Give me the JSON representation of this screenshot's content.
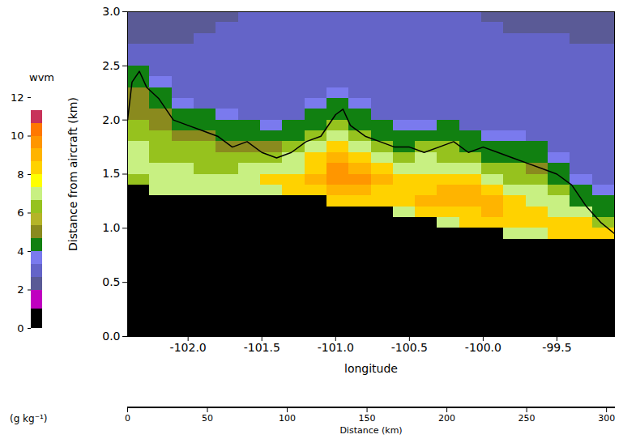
{
  "chart_data": {
    "type": "heatmap",
    "xlabel": "longitude",
    "ylabel": "Distance from aircraft (km)",
    "xlim": [
      -102.41,
      -99.11
    ],
    "xticks": [
      {
        "value": -102,
        "label": "-102.0"
      },
      -101.5,
      {
        "value": -101,
        "label": "-101.0"
      },
      -100.5,
      {
        "value": -100,
        "label": "-100.0"
      },
      -99.5
    ],
    "ylim": [
      0,
      3
    ],
    "yticks": [
      {
        "value": 0,
        "label": "0.0"
      },
      0.5,
      {
        "value": 1,
        "label": "1.0"
      },
      1.5,
      {
        "value": 2,
        "label": "2.0"
      },
      2.5,
      {
        "value": 3,
        "label": "3.0"
      }
    ],
    "x2label": "Distance (km)",
    "x2lim": [
      0,
      305
    ],
    "x2ticks": [
      0,
      50,
      100,
      150,
      200,
      250,
      300
    ],
    "grid": false,
    "cells": {
      "x_edges": [
        -102.41,
        -102.26,
        -102.11,
        -101.96,
        -101.81,
        -101.66,
        -101.51,
        -101.36,
        -101.21,
        -101.06,
        -100.91,
        -100.76,
        -100.61,
        -100.46,
        -100.31,
        -100.16,
        -100.01,
        -99.86,
        -99.71,
        -99.56,
        -99.41,
        -99.26,
        -99.11
      ],
      "y_edges": [
        0,
        0.1,
        0.2,
        0.3,
        0.4,
        0.5,
        0.6,
        0.7,
        0.8,
        0.9,
        1.0,
        1.1,
        1.2,
        1.3,
        1.4,
        1.5,
        1.6,
        1.7,
        1.8,
        1.9,
        2.0,
        2.1,
        2.2,
        2.3,
        2.4,
        2.5,
        2.6,
        2.7,
        2.8,
        2.9,
        3.0
      ],
      "values": [
        [
          0,
          0,
          0,
          0,
          0,
          0,
          0,
          0,
          0,
          0,
          0,
          0,
          0,
          0,
          6,
          7,
          7,
          7,
          6,
          6,
          5,
          5,
          5,
          4,
          4,
          3,
          3,
          2.5,
          2.5,
          2.5
        ],
        [
          0,
          0,
          0,
          0,
          0,
          0,
          0,
          0,
          0,
          0,
          0,
          0,
          0,
          7,
          7,
          7,
          6,
          6,
          6,
          5,
          5,
          4,
          4,
          3.5,
          3,
          3,
          3,
          2.5,
          2.5,
          2.5
        ],
        [
          0,
          0,
          0,
          0,
          0,
          0,
          0,
          0,
          0,
          0,
          0,
          0,
          0,
          7,
          7,
          7,
          6,
          6,
          5,
          4,
          4,
          3.5,
          3,
          3,
          3,
          3,
          3,
          2.5,
          2.5,
          2.5
        ],
        [
          0,
          0,
          0,
          0,
          0,
          0,
          0,
          0,
          0,
          0,
          0,
          0,
          0,
          7,
          7,
          6,
          6,
          6,
          5,
          4,
          4,
          3,
          3,
          3,
          3,
          3,
          3,
          3,
          2.5,
          2.5
        ],
        [
          0,
          0,
          0,
          0,
          0,
          0,
          0,
          0,
          0,
          0,
          0,
          0,
          0,
          7,
          7,
          6,
          6,
          5,
          4,
          4,
          3.5,
          3,
          3,
          3,
          3,
          3,
          3,
          3,
          3,
          2.5
        ],
        [
          0,
          0,
          0,
          0,
          0,
          0,
          0,
          0,
          0,
          0,
          0,
          0,
          0,
          7,
          7,
          7,
          6,
          5,
          4,
          4,
          3,
          3,
          3,
          3,
          3,
          3,
          3,
          3,
          3,
          3
        ],
        [
          0,
          0,
          0,
          0,
          0,
          0,
          0,
          0,
          0,
          0,
          0,
          0,
          0,
          7,
          8,
          7,
          6,
          5,
          4,
          3.5,
          3,
          3,
          3,
          3,
          3,
          3,
          3,
          3,
          3,
          3
        ],
        [
          0,
          0,
          0,
          0,
          0,
          0,
          0,
          0,
          0,
          0,
          0,
          0,
          0,
          8,
          8,
          7,
          7,
          6,
          4,
          4,
          3,
          3,
          3,
          3,
          3,
          3,
          3,
          3,
          3,
          3
        ],
        [
          0,
          0,
          0,
          0,
          0,
          0,
          0,
          0,
          0,
          0,
          0,
          0,
          0,
          8,
          9,
          8,
          8,
          7,
          6,
          4,
          4,
          3.5,
          3,
          3,
          3,
          3,
          3,
          3,
          3,
          3
        ],
        [
          0,
          0,
          0,
          0,
          0,
          0,
          0,
          0,
          0,
          0,
          0,
          0,
          8,
          9,
          9.5,
          9.5,
          9,
          8,
          7,
          6,
          4,
          4,
          3.5,
          3,
          3,
          3,
          3,
          3,
          3,
          3
        ],
        [
          0,
          0,
          0,
          0,
          0,
          0,
          0,
          0,
          0,
          0,
          0,
          0,
          8,
          9,
          9.5,
          9,
          8,
          7,
          6,
          4,
          4,
          3.5,
          3,
          3,
          3,
          3,
          3,
          3,
          3,
          3
        ],
        [
          0,
          0,
          0,
          0,
          0,
          0,
          0,
          0,
          0,
          0,
          0,
          0,
          8,
          8,
          9,
          8,
          7,
          6,
          4,
          4,
          3,
          3,
          3,
          3,
          3,
          3,
          3,
          3,
          3,
          3
        ],
        [
          0,
          0,
          0,
          0,
          0,
          0,
          0,
          0,
          0,
          0,
          0,
          7,
          8,
          8,
          8,
          7,
          6,
          4,
          4,
          3.5,
          3,
          3,
          3,
          3,
          3,
          3,
          3,
          3,
          3,
          3
        ],
        [
          0,
          0,
          0,
          0,
          0,
          0,
          0,
          0,
          0,
          0,
          0,
          8,
          9,
          8,
          8,
          7,
          7,
          6,
          4,
          3.5,
          3,
          3,
          3,
          3,
          3,
          3,
          3,
          3,
          3,
          3
        ],
        [
          0,
          0,
          0,
          0,
          0,
          0,
          0,
          0,
          0,
          0,
          7,
          8,
          9,
          9,
          8,
          7,
          6,
          6,
          4,
          4,
          3,
          3,
          3,
          3,
          3,
          3,
          3,
          3,
          3,
          3
        ],
        [
          0,
          0,
          0,
          0,
          0,
          0,
          0,
          0,
          0,
          0,
          8,
          8,
          9,
          9,
          8,
          7,
          6,
          4,
          4,
          3,
          3,
          3,
          3,
          3,
          3,
          3,
          3,
          3,
          3,
          3
        ],
        [
          0,
          0,
          0,
          0,
          0,
          0,
          0,
          0,
          0,
          0,
          8,
          9,
          9,
          8,
          7,
          6,
          4,
          4,
          3.5,
          3,
          3,
          3,
          3,
          3,
          3,
          3,
          3,
          3,
          3,
          2.5
        ],
        [
          0,
          0,
          0,
          0,
          0,
          0,
          0,
          0,
          0,
          7,
          8,
          8,
          8,
          7,
          6,
          6,
          4,
          4,
          3.5,
          3,
          3,
          3,
          3,
          3,
          3,
          3,
          3,
          3,
          2.5,
          2.5
        ],
        [
          0,
          0,
          0,
          0,
          0,
          0,
          0,
          0,
          0,
          7,
          8,
          8,
          7,
          7,
          6,
          5,
          4,
          4,
          3,
          3,
          3,
          3,
          3,
          3,
          3,
          3,
          3,
          3,
          2.5,
          2.5
        ],
        [
          0,
          0,
          0,
          0,
          0,
          0,
          0,
          0,
          0,
          8,
          8,
          7,
          7,
          6,
          4,
          4,
          3.5,
          3,
          3,
          3,
          3,
          3,
          3,
          3,
          3,
          3,
          3,
          3,
          2.5,
          2.5
        ],
        [
          0,
          0,
          0,
          0,
          0,
          0,
          0,
          0,
          0,
          8,
          8,
          7,
          4,
          4,
          3.5,
          3,
          3,
          3,
          3,
          3,
          3,
          3,
          3,
          3,
          3,
          3,
          3,
          2.5,
          2.5,
          2.5
        ],
        [
          0,
          0,
          0,
          0,
          0,
          0,
          0,
          0,
          0,
          8,
          6,
          4,
          4,
          3.5,
          3,
          3,
          3,
          3,
          3,
          3,
          3,
          3,
          3,
          3,
          3,
          3,
          3,
          2.5,
          2.5,
          2.5
        ]
      ]
    },
    "colorbar": {
      "title": "wvm",
      "units": "(g kg⁻¹)",
      "range": [
        0,
        12
      ],
      "ticks": [
        0,
        2,
        4,
        6,
        8,
        10,
        12
      ],
      "bounds": [
        0,
        1,
        2,
        2.67,
        3.33,
        4,
        4.67,
        5.33,
        6,
        6.67,
        7.33,
        8,
        8.67,
        9.33,
        10,
        10.67,
        11.33
      ],
      "colors": [
        "#000000",
        "#c000c0",
        "#5a5a96",
        "#6464c8",
        "#7a7aee",
        "#118011",
        "#8a8a1e",
        "#b4b428",
        "#96c21e",
        "#c8f082",
        "#ffff00",
        "#ffd200",
        "#ffb400",
        "#ff9600",
        "#ff7800",
        "#c8325a"
      ]
    },
    "series": [
      {
        "type": "line",
        "color": "#000000",
        "x": [
          -102.41,
          -102.38,
          -102.33,
          -102.28,
          -102.2,
          -102.1,
          -102.0,
          -101.9,
          -101.8,
          -101.7,
          -101.6,
          -101.5,
          -101.4,
          -101.3,
          -101.2,
          -101.1,
          -101.0,
          -100.95,
          -100.9,
          -100.8,
          -100.7,
          -100.6,
          -100.5,
          -100.4,
          -100.3,
          -100.2,
          -100.1,
          -100.0,
          -99.9,
          -99.8,
          -99.7,
          -99.6,
          -99.5,
          -99.4,
          -99.3,
          -99.2,
          -99.11
        ],
        "values": [
          2.0,
          2.35,
          2.45,
          2.3,
          2.2,
          2.0,
          1.95,
          1.9,
          1.85,
          1.75,
          1.8,
          1.7,
          1.65,
          1.7,
          1.8,
          1.85,
          2.05,
          2.1,
          1.95,
          1.85,
          1.8,
          1.75,
          1.75,
          1.7,
          1.75,
          1.8,
          1.7,
          1.75,
          1.7,
          1.65,
          1.6,
          1.55,
          1.5,
          1.4,
          1.2,
          1.05,
          0.95
        ]
      }
    ]
  }
}
